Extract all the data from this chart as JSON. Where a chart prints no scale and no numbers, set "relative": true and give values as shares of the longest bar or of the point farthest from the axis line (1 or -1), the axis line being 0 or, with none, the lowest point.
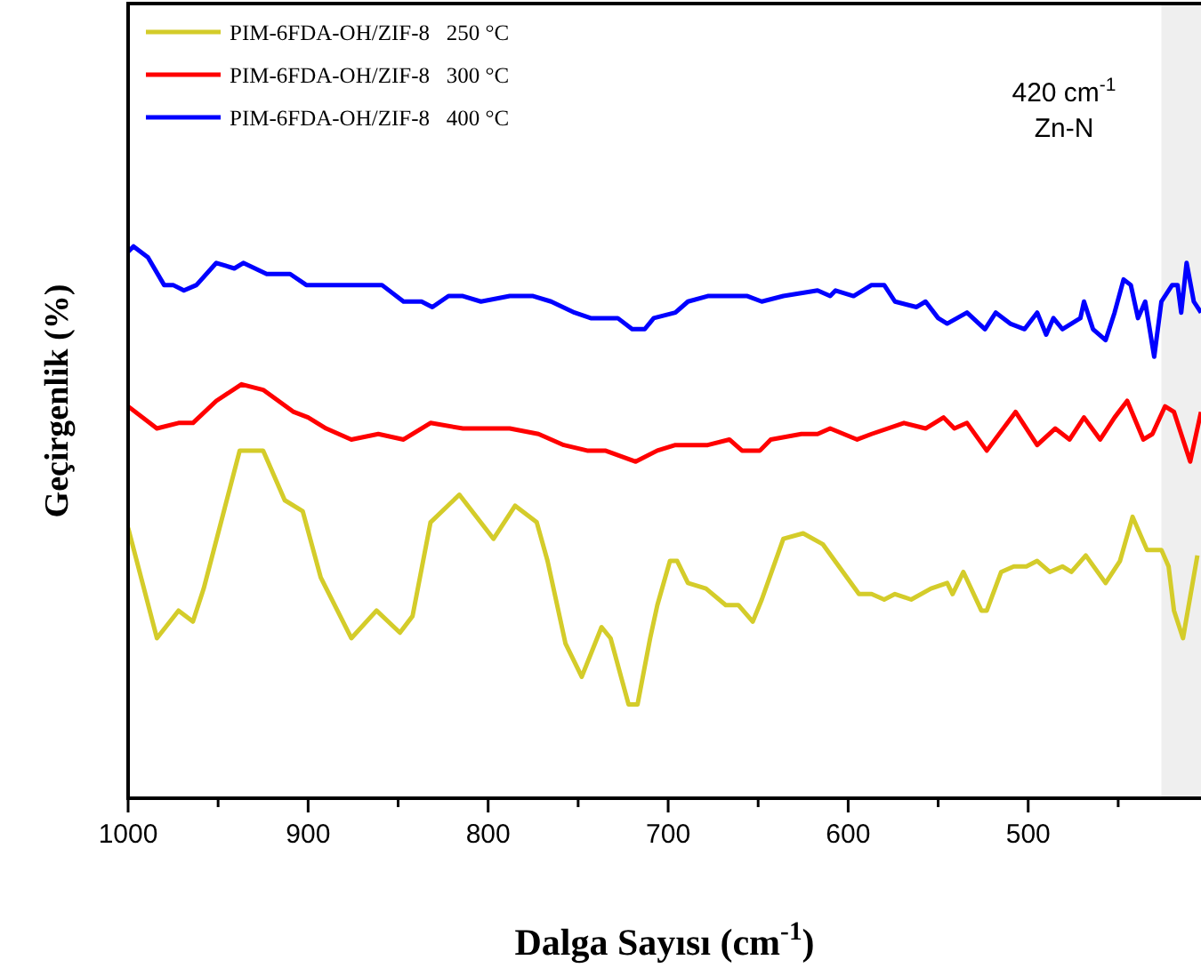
{
  "chart_data": {
    "type": "line",
    "relative": true,
    "xlabel": "Dalga Sayısı (cm$^{-1}$)",
    "ylabel": "Geçirgenlik (%)",
    "xlim": [
      1000,
      404
    ],
    "xticks": [
      1000,
      {
        "value": 950,
        "label": null
      },
      900,
      {
        "value": 850,
        "label": null
      },
      800,
      {
        "value": 750,
        "label": null
      },
      700,
      {
        "value": 650,
        "label": null
      },
      600,
      {
        "value": 550,
        "label": null
      },
      500,
      {
        "value": 450,
        "label": null
      }
    ],
    "tick_labels": "x",
    "grid": false,
    "legend": "top left",
    "marker": "none",
    "line_style": "solid",
    "bands": [
      {
        "axis": "x",
        "from": 426,
        "to": 404,
        "color": "#efefef"
      }
    ],
    "annotations": [
      "420 cm$^{-1}$",
      "Zn-N"
    ],
    "series": [
      {
        "name": "PIM-6FDA-OH/ZIF-8   250 °C",
        "color": "#d4cc2a",
        "x": [
          1000,
          984,
          972,
          964,
          958,
          938,
          925,
          913,
          903,
          893,
          876,
          862,
          849,
          842,
          832,
          816,
          797,
          785,
          773,
          767,
          757,
          748,
          737,
          732,
          722,
          717,
          710,
          706,
          699,
          695,
          689,
          679,
          668,
          661,
          653,
          648,
          636,
          625,
          614,
          594,
          587,
          580,
          574,
          565,
          554,
          545,
          542,
          536,
          526,
          523,
          515,
          508,
          501,
          495,
          488,
          481,
          476,
          468,
          457,
          449,
          442,
          434,
          426,
          422,
          419,
          414,
          406
        ],
        "values": [
          0.49,
          0.29,
          0.34,
          0.32,
          0.38,
          0.63,
          0.63,
          0.54,
          0.52,
          0.4,
          0.29,
          0.34,
          0.3,
          0.33,
          0.5,
          0.55,
          0.47,
          0.53,
          0.5,
          0.43,
          0.28,
          0.22,
          0.31,
          0.29,
          0.17,
          0.17,
          0.29,
          0.35,
          0.43,
          0.43,
          0.39,
          0.38,
          0.35,
          0.35,
          0.32,
          0.36,
          0.47,
          0.48,
          0.46,
          0.37,
          0.37,
          0.36,
          0.37,
          0.36,
          0.38,
          0.39,
          0.37,
          0.41,
          0.34,
          0.34,
          0.41,
          0.42,
          0.42,
          0.43,
          0.41,
          0.42,
          0.41,
          0.44,
          0.39,
          0.43,
          0.51,
          0.45,
          0.45,
          0.42,
          0.34,
          0.29,
          0.44
        ]
      },
      {
        "name": "PIM-6FDA-OH/ZIF-8   300 °C",
        "color": "#ff0000",
        "x": [
          1000,
          984,
          972,
          964,
          951,
          937,
          925,
          908,
          900,
          890,
          876,
          861,
          847,
          832,
          814,
          788,
          772,
          758,
          745,
          735,
          718,
          706,
          696,
          684,
          678,
          666,
          659,
          649,
          643,
          626,
          617,
          610,
          595,
          587,
          569,
          557,
          547,
          541,
          534,
          523,
          507,
          495,
          485,
          477,
          469,
          460,
          452,
          445,
          436,
          431,
          424,
          419,
          410,
          404
        ],
        "values": [
          0.71,
          0.67,
          0.68,
          0.68,
          0.72,
          0.75,
          0.74,
          0.7,
          0.69,
          0.67,
          0.65,
          0.66,
          0.65,
          0.68,
          0.67,
          0.67,
          0.66,
          0.64,
          0.63,
          0.63,
          0.61,
          0.63,
          0.64,
          0.64,
          0.64,
          0.65,
          0.63,
          0.63,
          0.65,
          0.66,
          0.66,
          0.67,
          0.65,
          0.66,
          0.68,
          0.67,
          0.69,
          0.67,
          0.68,
          0.63,
          0.7,
          0.64,
          0.67,
          0.65,
          0.69,
          0.65,
          0.69,
          0.72,
          0.65,
          0.66,
          0.71,
          0.7,
          0.61,
          0.7
        ]
      },
      {
        "name": "PIM-6FDA-OH/ZIF-8   400 °C",
        "color": "#0000ff",
        "x": [
          1000,
          997,
          989,
          980,
          975,
          969,
          962,
          951,
          941,
          936,
          923,
          910,
          901,
          886,
          871,
          859,
          847,
          837,
          831,
          822,
          814,
          804,
          788,
          775,
          765,
          752,
          743,
          728,
          720,
          713,
          708,
          696,
          689,
          678,
          666,
          656,
          648,
          636,
          617,
          610,
          607,
          597,
          587,
          580,
          574,
          562,
          557,
          550,
          545,
          534,
          524,
          518,
          510,
          502,
          495,
          490,
          486,
          481,
          471,
          469,
          464,
          457,
          452,
          447,
          443,
          439,
          435,
          430,
          426,
          420,
          417,
          415,
          412,
          408,
          404
        ],
        "values": [
          0.99,
          1,
          0.98,
          0.93,
          0.93,
          0.92,
          0.93,
          0.97,
          0.96,
          0.97,
          0.95,
          0.95,
          0.93,
          0.93,
          0.93,
          0.93,
          0.9,
          0.9,
          0.89,
          0.91,
          0.91,
          0.9,
          0.91,
          0.91,
          0.9,
          0.88,
          0.87,
          0.87,
          0.85,
          0.85,
          0.87,
          0.88,
          0.9,
          0.91,
          0.91,
          0.91,
          0.9,
          0.91,
          0.92,
          0.91,
          0.92,
          0.91,
          0.93,
          0.93,
          0.9,
          0.89,
          0.9,
          0.87,
          0.86,
          0.88,
          0.85,
          0.88,
          0.86,
          0.85,
          0.88,
          0.84,
          0.87,
          0.85,
          0.87,
          0.9,
          0.85,
          0.83,
          0.88,
          0.94,
          0.93,
          0.87,
          0.9,
          0.8,
          0.9,
          0.93,
          0.93,
          0.88,
          0.97,
          0.9,
          0.88
        ]
      }
    ]
  }
}
